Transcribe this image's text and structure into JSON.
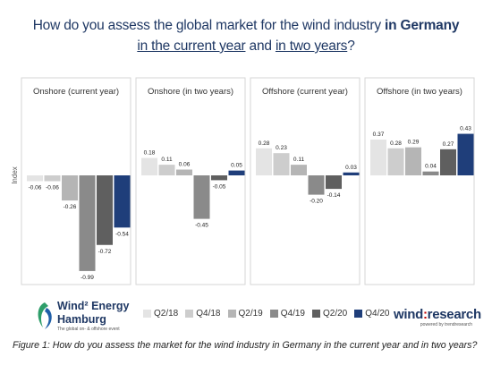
{
  "header": {
    "line1_plain": "How do you assess the global market for the wind industry ",
    "line1_bold": "in Germany",
    "line2_part1": "in the current year",
    "line2_part2": " and ",
    "line2_part3": "in two years",
    "line2_part4": "?"
  },
  "chart_data": {
    "type": "bar",
    "ylabel": "Index",
    "ylim": [
      -1,
      0.5
    ],
    "series_names": [
      "Q2/18",
      "Q4/18",
      "Q2/19",
      "Q4/19",
      "Q2/20",
      "Q4/20"
    ],
    "colors": [
      "#e4e4e4",
      "#cdcdcd",
      "#b5b5b5",
      "#8a8a8a",
      "#5f5f5f",
      "#1f3e7a"
    ],
    "panels": [
      {
        "title": "Onshore (current year)",
        "values": [
          -0.06,
          -0.06,
          -0.26,
          -0.99,
          -0.72,
          -0.54
        ]
      },
      {
        "title": "Onshore (in two years)",
        "values": [
          0.18,
          0.11,
          0.06,
          -0.45,
          -0.05,
          0.05
        ]
      },
      {
        "title": "Offshore (current year)",
        "values": [
          0.28,
          0.23,
          0.11,
          -0.2,
          -0.14,
          0.03
        ]
      },
      {
        "title": "Offshore (in two years)",
        "values": [
          0.37,
          0.28,
          0.29,
          0.04,
          0.27,
          0.43
        ]
      }
    ]
  },
  "logos": {
    "windenergy_line1": "Wind² Energy",
    "windenergy_line2": "Hamburg",
    "windenergy_tagline": "The global on- & offshore event",
    "windresearch_a": "wind",
    "windresearch_b": ":",
    "windresearch_c": "research",
    "windresearch_tagline": "powered by trendresearch"
  },
  "caption": "Figure 1: How do you assess the market for the wind industry in Germany in the current year and in two years?"
}
